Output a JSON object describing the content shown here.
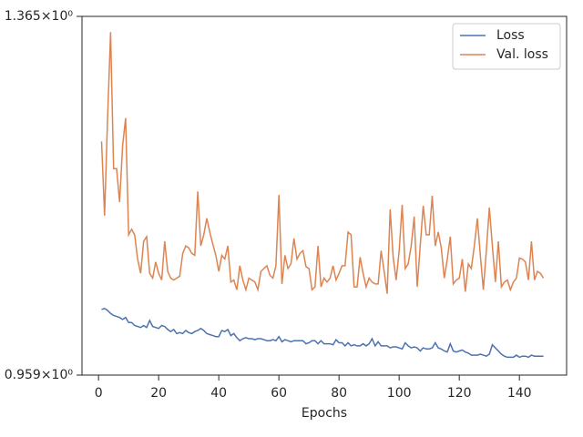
{
  "chart_data": {
    "type": "line",
    "x_label": "Epochs",
    "yscale": "log",
    "legend": "upper right",
    "xlim": [
      -5.5,
      155.7
    ],
    "xticks": [
      0,
      20,
      40,
      60,
      80,
      100,
      120,
      140
    ],
    "ylim": [
      0.959,
      1.365
    ],
    "yticks": [
      {
        "value": 0.959,
        "label": "0.959×10⁰"
      },
      {
        "value": 1.365,
        "label": "1.365×10⁰"
      }
    ],
    "x": [
      1,
      2,
      3,
      4,
      5,
      6,
      7,
      8,
      9,
      10,
      11,
      12,
      13,
      14,
      15,
      16,
      17,
      18,
      19,
      20,
      21,
      22,
      23,
      24,
      25,
      26,
      27,
      28,
      29,
      30,
      31,
      32,
      33,
      34,
      35,
      36,
      37,
      38,
      39,
      40,
      41,
      42,
      43,
      44,
      45,
      46,
      47,
      48,
      49,
      50,
      51,
      52,
      53,
      54,
      55,
      56,
      57,
      58,
      59,
      60,
      61,
      62,
      63,
      64,
      65,
      66,
      67,
      68,
      69,
      70,
      71,
      72,
      73,
      74,
      75,
      76,
      77,
      78,
      79,
      80,
      81,
      82,
      83,
      84,
      85,
      86,
      87,
      88,
      89,
      90,
      91,
      92,
      93,
      94,
      95,
      96,
      97,
      98,
      99,
      100,
      101,
      102,
      103,
      104,
      105,
      106,
      107,
      108,
      109,
      110,
      111,
      112,
      113,
      114,
      115,
      116,
      117,
      118,
      119,
      120,
      121,
      122,
      123,
      124,
      125,
      126,
      127,
      128,
      129,
      130,
      131,
      132,
      133,
      134,
      135,
      136,
      137,
      138,
      139,
      140,
      141,
      142,
      143,
      144,
      145,
      146,
      147,
      148
    ],
    "series": [
      {
        "name": "Loss",
        "color": "#4c72b0",
        "values": [
          1.023,
          1.024,
          1.022,
          1.019,
          1.017,
          1.016,
          1.015,
          1.013,
          1.015,
          1.01,
          1.01,
          1.007,
          1.006,
          1.005,
          1.007,
          1.005,
          1.012,
          1.006,
          1.005,
          1.004,
          1.007,
          1.006,
          1.003,
          1.001,
          1.003,
          0.999,
          1.0,
          0.999,
          1.002,
          1.0,
          0.999,
          1.001,
          1.002,
          1.004,
          1.002,
          0.999,
          0.998,
          0.997,
          0.996,
          0.996,
          1.002,
          1.001,
          1.003,
          0.997,
          0.999,
          0.995,
          0.992,
          0.994,
          0.995,
          0.994,
          0.994,
          0.993,
          0.994,
          0.994,
          0.993,
          0.992,
          0.992,
          0.993,
          0.992,
          0.996,
          0.991,
          0.993,
          0.992,
          0.991,
          0.992,
          0.992,
          0.992,
          0.992,
          0.989,
          0.99,
          0.992,
          0.992,
          0.989,
          0.992,
          0.989,
          0.989,
          0.989,
          0.988,
          0.993,
          0.99,
          0.99,
          0.987,
          0.99,
          0.987,
          0.988,
          0.987,
          0.987,
          0.989,
          0.987,
          0.989,
          0.994,
          0.987,
          0.991,
          0.987,
          0.987,
          0.987,
          0.985,
          0.986,
          0.986,
          0.985,
          0.984,
          0.99,
          0.987,
          0.985,
          0.986,
          0.985,
          0.982,
          0.985,
          0.984,
          0.984,
          0.985,
          0.99,
          0.985,
          0.984,
          0.982,
          0.981,
          0.989,
          0.982,
          0.981,
          0.982,
          0.983,
          0.981,
          0.98,
          0.978,
          0.978,
          0.978,
          0.979,
          0.978,
          0.977,
          0.979,
          0.988,
          0.985,
          0.982,
          0.979,
          0.977,
          0.976,
          0.976,
          0.976,
          0.978,
          0.976,
          0.977,
          0.977,
          0.976,
          0.978,
          0.977,
          0.977,
          0.977,
          0.977
        ]
      },
      {
        "name": "Val. loss",
        "color": "#dd8452",
        "values": [
          1.207,
          1.122,
          1.235,
          1.344,
          1.175,
          1.175,
          1.137,
          1.202,
          1.235,
          1.101,
          1.107,
          1.101,
          1.075,
          1.06,
          1.094,
          1.099,
          1.06,
          1.055,
          1.072,
          1.06,
          1.053,
          1.094,
          1.062,
          1.055,
          1.053,
          1.055,
          1.057,
          1.081,
          1.089,
          1.087,
          1.081,
          1.079,
          1.149,
          1.089,
          1.101,
          1.119,
          1.104,
          1.091,
          1.079,
          1.062,
          1.079,
          1.075,
          1.089,
          1.051,
          1.053,
          1.043,
          1.068,
          1.053,
          1.043,
          1.055,
          1.053,
          1.051,
          1.043,
          1.062,
          1.065,
          1.068,
          1.058,
          1.055,
          1.068,
          1.145,
          1.049,
          1.079,
          1.065,
          1.07,
          1.097,
          1.075,
          1.081,
          1.084,
          1.067,
          1.065,
          1.043,
          1.046,
          1.089,
          1.046,
          1.055,
          1.051,
          1.055,
          1.068,
          1.053,
          1.06,
          1.068,
          1.068,
          1.104,
          1.101,
          1.046,
          1.046,
          1.077,
          1.06,
          1.046,
          1.055,
          1.051,
          1.049,
          1.049,
          1.084,
          1.062,
          1.039,
          1.129,
          1.077,
          1.053,
          1.084,
          1.134,
          1.065,
          1.07,
          1.089,
          1.121,
          1.046,
          1.089,
          1.133,
          1.101,
          1.101,
          1.144,
          1.089,
          1.104,
          1.087,
          1.055,
          1.075,
          1.099,
          1.049,
          1.053,
          1.055,
          1.075,
          1.041,
          1.07,
          1.065,
          1.089,
          1.119,
          1.079,
          1.043,
          1.084,
          1.131,
          1.089,
          1.051,
          1.094,
          1.046,
          1.051,
          1.053,
          1.043,
          1.051,
          1.055,
          1.076,
          1.075,
          1.072,
          1.053,
          1.094,
          1.053,
          1.062,
          1.06,
          1.055
        ]
      }
    ]
  }
}
